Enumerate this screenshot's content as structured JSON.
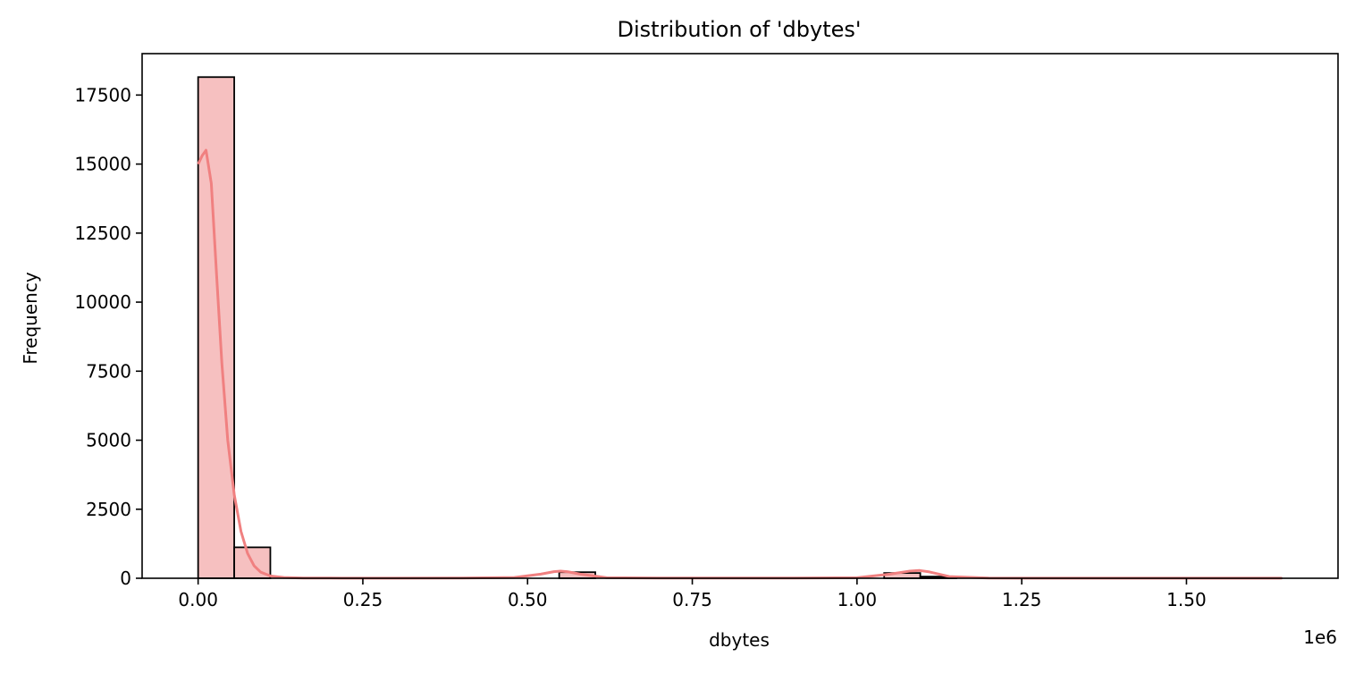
{
  "chart_data": {
    "type": "bar",
    "title": "Distribution of 'dbytes'",
    "xlabel": "dbytes",
    "ylabel": "Frequency",
    "x_offset_label": "1e6",
    "x_scale_factor": 1000000,
    "xlim": [
      -0.085,
      1.73
    ],
    "ylim": [
      0,
      19000
    ],
    "x_ticks": [
      0.0,
      0.25,
      0.5,
      0.75,
      1.0,
      1.25,
      1.5
    ],
    "x_tick_labels": [
      "0.00",
      "0.25",
      "0.50",
      "0.75",
      "1.00",
      "1.25",
      "1.50"
    ],
    "y_ticks": [
      0,
      2500,
      5000,
      7500,
      10000,
      12500,
      15000,
      17500
    ],
    "y_tick_labels": [
      "0",
      "2500",
      "5000",
      "7500",
      "10000",
      "12500",
      "15000",
      "17500"
    ],
    "bin_width": 0.0548,
    "bins": [
      {
        "x0": 0.0,
        "count": 18150
      },
      {
        "x0": 0.0548,
        "count": 1120
      },
      {
        "x0": 0.548,
        "count": 220
      },
      {
        "x0": 1.0412,
        "count": 190
      },
      {
        "x0": 1.096,
        "count": 60
      },
      {
        "x0": 1.5892,
        "count": 8
      }
    ],
    "kde": {
      "x": [
        0.0,
        0.006,
        0.012,
        0.02,
        0.028,
        0.036,
        0.045,
        0.055,
        0.065,
        0.075,
        0.085,
        0.095,
        0.11,
        0.13,
        0.16,
        0.2,
        0.3,
        0.4,
        0.48,
        0.52,
        0.54,
        0.55,
        0.56,
        0.58,
        0.62,
        0.7,
        0.9,
        1.0,
        1.05,
        1.08,
        1.095,
        1.11,
        1.14,
        1.2,
        1.4,
        1.6,
        1.645
      ],
      "y": [
        15000,
        15300,
        15500,
        14300,
        11000,
        7800,
        5000,
        3000,
        1700,
        900,
        450,
        220,
        80,
        30,
        10,
        5,
        3,
        5,
        30,
        150,
        240,
        260,
        240,
        150,
        20,
        5,
        5,
        20,
        150,
        260,
        280,
        230,
        60,
        8,
        3,
        2,
        2
      ]
    },
    "colors": {
      "bar_fill": "#f6c0c0",
      "bar_edge": "#000000",
      "kde_line": "#f08080"
    },
    "grid": false,
    "legend": "none"
  }
}
